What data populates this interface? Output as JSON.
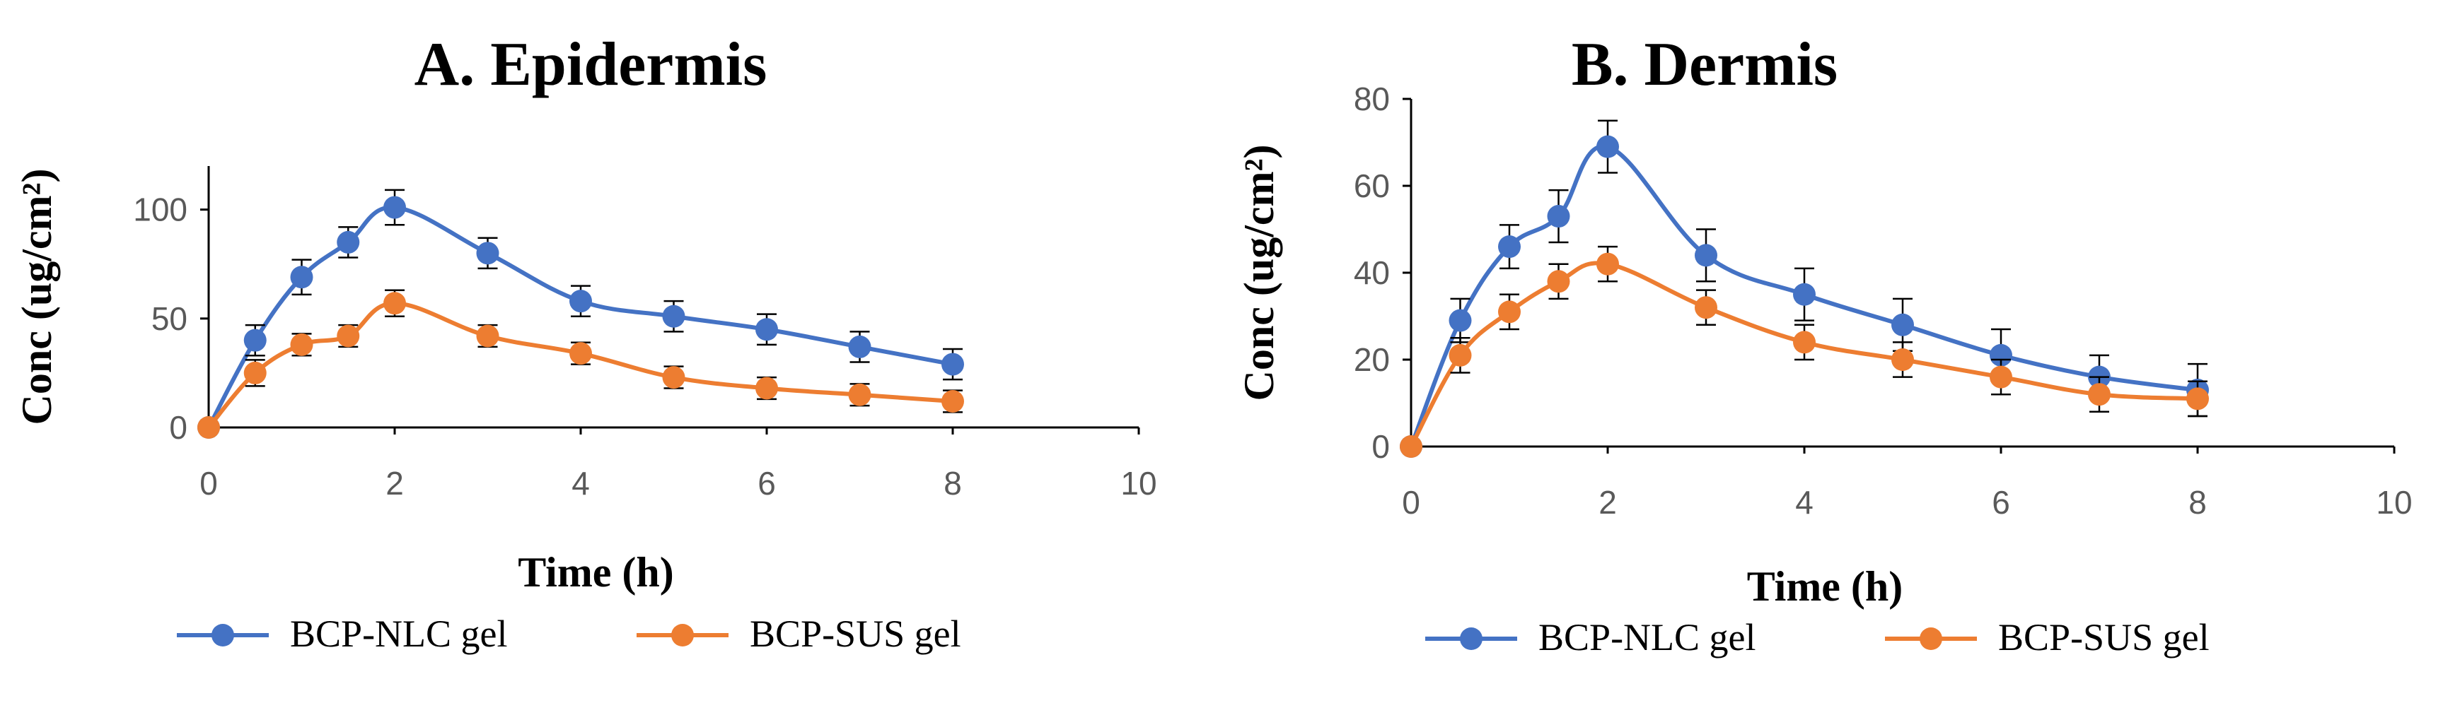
{
  "chart_data": [
    {
      "type": "line",
      "title": "A. Epidermis",
      "xlabel": "Time (h)",
      "ylabel": "Conc (ug/cm²)",
      "xlim": [
        0,
        10
      ],
      "ylim": [
        0,
        120
      ],
      "xticks": [
        0,
        2,
        4,
        6,
        8,
        10
      ],
      "yticks": [
        0,
        50,
        100
      ],
      "grid": false,
      "legend_position": "bottom",
      "series": [
        {
          "name": "BCP-NLC gel",
          "color": "#4472C4",
          "x": [
            0,
            0.5,
            1,
            1.5,
            2,
            3,
            4,
            5,
            6,
            7,
            8
          ],
          "y": [
            0,
            40,
            69,
            85,
            101,
            80,
            58,
            51,
            45,
            37,
            29
          ],
          "error": [
            0,
            7,
            8,
            7,
            8,
            7,
            7,
            7,
            7,
            7,
            7
          ]
        },
        {
          "name": "BCP-SUS gel",
          "color": "#ED7D31",
          "x": [
            0,
            0.5,
            1,
            1.5,
            2,
            3,
            4,
            5,
            6,
            7,
            8
          ],
          "y": [
            0,
            25,
            38,
            42,
            57,
            42,
            34,
            23,
            18,
            15,
            12
          ],
          "error": [
            0,
            6,
            5,
            5,
            6,
            5,
            5,
            5,
            5,
            5,
            5
          ]
        }
      ]
    },
    {
      "type": "line",
      "title": "B. Dermis",
      "xlabel": "Time (h)",
      "ylabel": "Conc (ug/cm²)",
      "xlim": [
        0,
        10
      ],
      "ylim": [
        0,
        80
      ],
      "xticks": [
        0,
        2,
        4,
        6,
        8,
        10
      ],
      "yticks": [
        0,
        20,
        40,
        60,
        80
      ],
      "grid": false,
      "legend_position": "bottom",
      "series": [
        {
          "name": "BCP-NLC gel",
          "color": "#4472C4",
          "x": [
            0,
            0.5,
            1,
            1.5,
            2,
            3,
            4,
            5,
            6,
            7,
            8
          ],
          "y": [
            0,
            29,
            46,
            53,
            69,
            44,
            35,
            28,
            21,
            16,
            13
          ],
          "error": [
            0,
            5,
            5,
            6,
            6,
            6,
            6,
            6,
            6,
            5,
            6
          ]
        },
        {
          "name": "BCP-SUS gel",
          "color": "#ED7D31",
          "x": [
            0,
            0.5,
            1,
            1.5,
            2,
            3,
            4,
            5,
            6,
            7,
            8
          ],
          "y": [
            0,
            21,
            31,
            38,
            42,
            32,
            24,
            20,
            16,
            12,
            11
          ],
          "error": [
            0,
            4,
            4,
            4,
            4,
            4,
            4,
            4,
            4,
            4,
            4
          ]
        }
      ]
    }
  ]
}
